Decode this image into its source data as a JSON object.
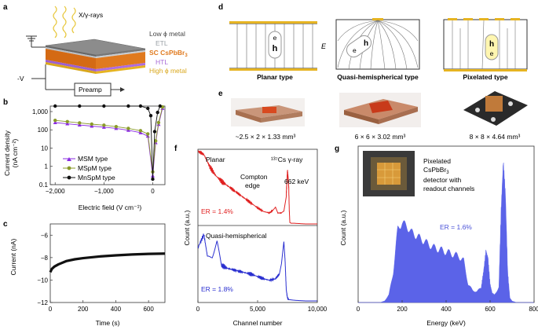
{
  "panels": {
    "a": {
      "letter": "a",
      "radiation": "X/γ-rays",
      "layers": [
        "Low ϕ metal",
        "ETL",
        "SC CsPbBr3",
        "HTL",
        "High ϕ metal"
      ],
      "bias": "-V",
      "preamp": "Preamp",
      "colors": {
        "low_metal": "#555555",
        "etl": "#9aa0a6",
        "sc": "#e07a1f",
        "htl": "#a86bd6",
        "high_metal": "#e6b422"
      }
    },
    "b": {
      "letter": "b",
      "ylabel": "Current density",
      "ylabel2": "(nA cm⁻²)",
      "xlabel": "Electric field (V cm⁻¹)",
      "xticks": [
        "−2,000",
        "−1,000",
        "0"
      ],
      "yticks": [
        "1,000",
        "100",
        "10",
        "1",
        "0.1"
      ],
      "legend": [
        "MSM type",
        "MSpM type",
        "MnSpM type"
      ]
    },
    "c": {
      "letter": "c",
      "ylabel": "Current (nA)",
      "xlabel": "Time (s)",
      "xticks": [
        "0",
        "200",
        "400",
        "600"
      ],
      "yticks": [
        "−6",
        "−8",
        "−10",
        "−12"
      ]
    },
    "d": {
      "letter": "d",
      "types": [
        "Planar type",
        "Quasi-hemispherical type",
        "Pixelated type"
      ],
      "field": "E",
      "hole": "h",
      "electron": "e"
    },
    "e": {
      "letter": "e",
      "sizes": [
        "~2.5 × 2 × 1.33 mm³",
        "6 × 6 × 3.02 mm³",
        "8 × 8 × 4.64 mm³"
      ]
    },
    "f": {
      "letter": "f",
      "ylabel": "Count (a.u.)",
      "xlabel": "Channel number",
      "xticks": [
        "0",
        "5,000",
        "10,000"
      ],
      "top_title": "Planar",
      "source": "¹³⁷Cs γ-ray",
      "compton": "Compton",
      "compton2": "edge",
      "peak": "662 keV",
      "er_top": "ER = 1.4%",
      "bottom_title": "Quasi-hemispherical",
      "er_bottom": "ER = 1.8%",
      "colors": {
        "top": "#e02020",
        "bottom": "#2a2fd0"
      }
    },
    "g": {
      "letter": "g",
      "ylabel": "Count (a.u.)",
      "xlabel": "Energy (keV)",
      "xticks": [
        "0",
        "200",
        "400",
        "600",
        "800"
      ],
      "note": [
        "Pixelated",
        "CsPbBr3",
        "detector with",
        "readout channels"
      ],
      "er": "ER = 1.6%",
      "color": "#5b63e8"
    }
  },
  "chart_data": [
    {
      "type": "line",
      "panel": "b",
      "xlabel": "Electric field (V cm⁻¹)",
      "ylabel": "Current density (nA cm⁻²)",
      "xlim": [
        -2100,
        250
      ],
      "ylim": [
        0.1,
        2000
      ],
      "yscale": "log",
      "series": [
        {
          "name": "MSM type",
          "color": "#8a2be2",
          "x": [
            -2000,
            -1750,
            -1500,
            -1250,
            -1000,
            -750,
            -500,
            -250,
            -100,
            0,
            60,
            120,
            200
          ],
          "y": [
            250,
            215,
            185,
            160,
            140,
            120,
            95,
            70,
            45,
            0.3,
            20,
            200,
            1500
          ]
        },
        {
          "name": "MSpM type",
          "color": "#8a9a2a",
          "x": [
            -2000,
            -1750,
            -1500,
            -1250,
            -1000,
            -750,
            -500,
            -250,
            -100,
            0,
            60,
            120,
            200
          ],
          "y": [
            330,
            280,
            240,
            205,
            180,
            150,
            120,
            90,
            60,
            0.5,
            25,
            250,
            1800
          ]
        },
        {
          "name": "MnSpM type",
          "color": "#111111",
          "x": [
            -2000,
            -1500,
            -1000,
            -500,
            -250,
            -100,
            -40,
            0,
            40,
            100,
            150
          ],
          "y": [
            2000,
            2000,
            2000,
            2000,
            2000,
            1500,
            600,
            0.2,
            80,
            900,
            2000
          ]
        }
      ]
    },
    {
      "type": "line",
      "panel": "c",
      "xlabel": "Time (s)",
      "ylabel": "Current (nA)",
      "xlim": [
        0,
        700
      ],
      "ylim": [
        -12,
        -5
      ],
      "series": [
        {
          "name": "current",
          "color": "#111111",
          "x": [
            0,
            10,
            25,
            50,
            100,
            150,
            200,
            300,
            400,
            500,
            600,
            700
          ],
          "y": [
            -9.3,
            -9.0,
            -8.8,
            -8.6,
            -8.3,
            -8.15,
            -8.05,
            -7.9,
            -7.8,
            -7.72,
            -7.67,
            -7.64
          ]
        }
      ]
    },
    {
      "type": "line",
      "panel": "f-top",
      "title": "Planar",
      "xlabel": "Channel number",
      "ylabel": "Count (a.u.)",
      "xlim": [
        0,
        10000
      ],
      "ylim": [
        0,
        1
      ],
      "series": [
        {
          "name": "Planar",
          "color": "#e02020",
          "x": [
            0,
            500,
            1000,
            1500,
            2000,
            2500,
            3000,
            3500,
            4000,
            4500,
            5000,
            5500,
            6000,
            6300,
            6500,
            6700,
            7000,
            7200,
            7400,
            7500,
            7600,
            7650,
            7700,
            7800,
            8000,
            9000,
            10000
          ],
          "y": [
            1.0,
            0.95,
            0.78,
            0.66,
            0.58,
            0.52,
            0.46,
            0.4,
            0.34,
            0.28,
            0.22,
            0.17,
            0.15,
            0.19,
            0.24,
            0.15,
            0.15,
            0.18,
            0.4,
            0.72,
            0.55,
            0.2,
            0.02,
            0.01,
            0.01,
            0.0,
            0.0
          ]
        }
      ]
    },
    {
      "type": "line",
      "panel": "f-bottom",
      "title": "Quasi-hemispherical",
      "xlabel": "Channel number",
      "ylabel": "Count (a.u.)",
      "xlim": [
        0,
        10000
      ],
      "ylim": [
        0,
        1
      ],
      "series": [
        {
          "name": "Quasi-hemispherical",
          "color": "#2a2fd0",
          "x": [
            0,
            500,
            800,
            1200,
            1600,
            2000,
            2500,
            3000,
            3500,
            4000,
            4500,
            5000,
            5500,
            6000,
            6500,
            6800,
            7000,
            7200,
            7300,
            7400,
            7500,
            7600,
            8000,
            9000,
            10000
          ],
          "y": [
            0.72,
            0.9,
            0.6,
            0.62,
            0.82,
            0.48,
            0.44,
            0.42,
            0.4,
            0.38,
            0.36,
            0.33,
            0.3,
            0.28,
            0.3,
            0.36,
            0.5,
            0.8,
            0.55,
            0.15,
            0.04,
            0.02,
            0.01,
            0.0,
            0.0
          ]
        }
      ]
    },
    {
      "type": "area",
      "panel": "g",
      "xlabel": "Energy (keV)",
      "ylabel": "Count (a.u.)",
      "xlim": [
        0,
        800
      ],
      "ylim": [
        0,
        1
      ],
      "series": [
        {
          "name": "spectrum",
          "color": "#5b63e8",
          "x": [
            0,
            100,
            120,
            140,
            160,
            180,
            200,
            220,
            240,
            260,
            280,
            300,
            340,
            380,
            420,
            460,
            480,
            500,
            520,
            540,
            560,
            570,
            580,
            590,
            600,
            610,
            620,
            640,
            650,
            660,
            670,
            680,
            690,
            700,
            720,
            800
          ],
          "y": [
            0,
            0,
            0.01,
            0.05,
            0.2,
            0.48,
            0.52,
            0.5,
            0.46,
            0.44,
            0.42,
            0.4,
            0.36,
            0.34,
            0.32,
            0.3,
            0.27,
            0.12,
            0.08,
            0.07,
            0.1,
            0.2,
            0.32,
            0.3,
            0.12,
            0.06,
            0.05,
            0.1,
            0.6,
            0.92,
            0.7,
            0.2,
            0.03,
            0.01,
            0,
            0
          ]
        }
      ]
    }
  ]
}
